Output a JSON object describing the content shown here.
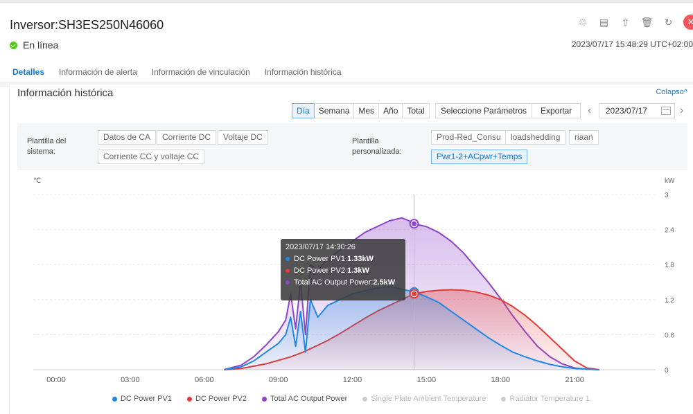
{
  "header": {
    "title": "Inversor:SH3ES250N46060",
    "status": "En línea",
    "timestamp": "2023/07/17 15:48:29 UTC+02:00",
    "icons": [
      "share-icon",
      "document-icon",
      "upload-icon",
      "delete-icon",
      "refresh-icon",
      "close-icon"
    ]
  },
  "tabs": [
    {
      "label": "Detalles",
      "active": true
    },
    {
      "label": "Información de alerta"
    },
    {
      "label": "Información de vinculación"
    },
    {
      "label": "Información histórica"
    }
  ],
  "history": {
    "title": "Información histórica",
    "collapse": "Colapso",
    "period_buttons": [
      {
        "label": "Día",
        "selected": true
      },
      {
        "label": "Semana"
      },
      {
        "label": "Mes"
      },
      {
        "label": "Año"
      },
      {
        "label": "Total"
      }
    ],
    "select_params": "Seleccione Parámetros",
    "export": "Exportar",
    "date": "2023/07/17",
    "system_template_label": "Plantilla del sistema:",
    "system_templates": [
      "Datos de CA",
      "Corriente DC",
      "Voltaje DC",
      "Corriente CC y voltaje CC"
    ],
    "custom_template_label": "Plantilla personalizada:",
    "custom_templates": [
      {
        "label": "Prod-Red_Consu"
      },
      {
        "label": "loadshedding"
      },
      {
        "label": "riaan"
      },
      {
        "label": "Pwr1-2+ACpwr+Temps",
        "selected": true
      }
    ]
  },
  "chart_data": {
    "type": "area",
    "left_unit": "℃",
    "right_unit": "kW",
    "x_ticks": [
      "00:00",
      "03:00",
      "06:00",
      "09:00",
      "12:00",
      "15:00",
      "18:00",
      "21:00"
    ],
    "y_right_ticks": [
      "0",
      "0.6",
      "1.2",
      "1.8",
      "2.4",
      "3"
    ],
    "ylim": [
      0,
      3
    ],
    "x_hours_range": [
      0,
      24
    ],
    "colors": {
      "pv1": "#1e88e5",
      "pv2": "#e53935",
      "ac": "#8e44c8"
    },
    "series": [
      {
        "name": "DC Power PV1",
        "color": "#1e88e5",
        "x": [
          6.8,
          7.5,
          8,
          8.5,
          9,
          9.3,
          9.5,
          9.7,
          9.9,
          10.1,
          10.3,
          10.6,
          11,
          11.5,
          12,
          12.5,
          13,
          13.5,
          14,
          14.3,
          14.5,
          15,
          15.5,
          16,
          16.5,
          17,
          17.5,
          18,
          18.5,
          19,
          19.5,
          20,
          20.5,
          21,
          21.5,
          22
        ],
        "values": [
          0,
          0.05,
          0.15,
          0.3,
          0.45,
          0.6,
          0.9,
          0.4,
          1.0,
          0.3,
          1.2,
          0.9,
          1.1,
          1.2,
          1.3,
          1.35,
          1.4,
          1.42,
          1.38,
          1.35,
          1.33,
          1.25,
          1.15,
          1.0,
          0.85,
          0.7,
          0.55,
          0.42,
          0.3,
          0.22,
          0.15,
          0.09,
          0.05,
          0.02,
          0.01,
          0
        ]
      },
      {
        "name": "DC Power PV2",
        "color": "#e53935",
        "x": [
          6.8,
          7.5,
          8,
          8.5,
          9,
          9.5,
          10,
          10.5,
          11,
          11.5,
          12,
          12.5,
          13,
          13.5,
          14,
          14.5,
          15,
          15.5,
          16,
          16.5,
          17,
          17.5,
          18,
          18.5,
          19,
          19.5,
          20,
          20.5,
          21,
          21.5,
          22
        ],
        "values": [
          0,
          0.02,
          0.06,
          0.1,
          0.16,
          0.22,
          0.3,
          0.4,
          0.5,
          0.62,
          0.75,
          0.88,
          1.0,
          1.1,
          1.2,
          1.3,
          1.34,
          1.36,
          1.37,
          1.36,
          1.33,
          1.28,
          1.2,
          1.08,
          0.93,
          0.75,
          0.55,
          0.35,
          0.15,
          0.03,
          0
        ]
      },
      {
        "name": "Total AC Output Power",
        "color": "#8e44c8",
        "x": [
          6.8,
          7.5,
          8,
          8.5,
          9,
          9.3,
          9.5,
          9.7,
          9.9,
          10.1,
          10.3,
          10.6,
          11,
          11.5,
          12,
          12.5,
          13,
          13.5,
          14,
          14.3,
          14.5,
          15,
          15.5,
          16,
          16.5,
          17,
          17.5,
          18,
          18.5,
          19,
          19.5,
          20,
          20.5,
          21,
          21.5,
          22
        ],
        "values": [
          0,
          0.08,
          0.22,
          0.42,
          0.65,
          0.85,
          1.3,
          0.7,
          1.5,
          0.6,
          1.8,
          1.7,
          1.9,
          2.05,
          2.2,
          2.35,
          2.45,
          2.55,
          2.6,
          2.55,
          2.5,
          2.45,
          2.35,
          2.2,
          2.0,
          1.75,
          1.5,
          1.22,
          0.92,
          0.65,
          0.4,
          0.22,
          0.1,
          0.03,
          0.01,
          0
        ]
      },
      {
        "name": "Single Plate Ambient Temperature",
        "hidden": true
      },
      {
        "name": "Radiator Temperature 1",
        "hidden": true
      }
    ],
    "tooltip": {
      "time": "2023/07/17 14:30:26",
      "x_hour": 14.5,
      "items": [
        {
          "label": "DC Power PV1:",
          "value": "1.33kW",
          "color": "#1e88e5"
        },
        {
          "label": "DC Power PV2:",
          "value": "1.3kW",
          "color": "#e53935"
        },
        {
          "label": "Total AC Output Power:",
          "value": "2.5kW",
          "color": "#8e44c8"
        }
      ]
    },
    "legend": [
      {
        "label": "DC Power PV1",
        "color": "#1e88e5"
      },
      {
        "label": "DC Power PV2",
        "color": "#e53935"
      },
      {
        "label": "Total AC Output Power",
        "color": "#8e44c8"
      },
      {
        "label": "Single Plate Ambient Temperature",
        "color": "#cccccc",
        "off": true
      },
      {
        "label": "Radiator Temperature 1",
        "color": "#cccccc",
        "off": true
      }
    ]
  }
}
